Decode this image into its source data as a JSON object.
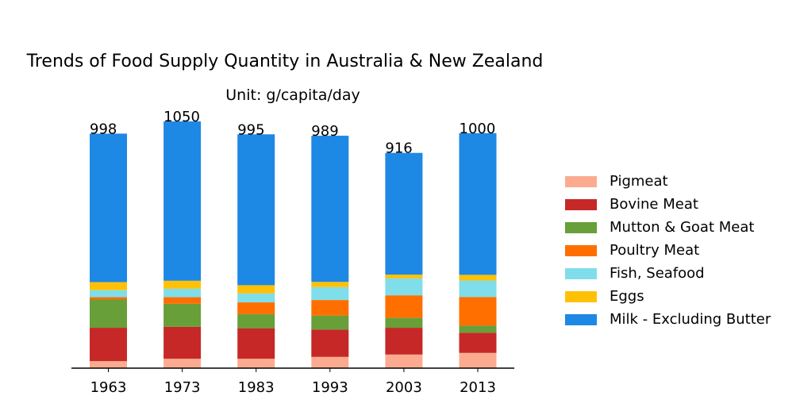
{
  "chart_data": {
    "type": "bar",
    "stacked": true,
    "title": "Trends of Food Supply Quantity in Australia & New Zealand",
    "subtitle": "Unit: g/capita/day",
    "xlabel": "",
    "ylabel": "",
    "categories": [
      "1963",
      "1973",
      "1983",
      "1993",
      "2003",
      "2013"
    ],
    "ylim": [
      0,
      1050
    ],
    "totals": [
      "998",
      "1050",
      "995",
      "989",
      "916",
      "1000"
    ],
    "legend_position": "right",
    "series": [
      {
        "name": "Pigmeat",
        "color": "#FCAB90",
        "values": [
          30,
          40,
          40,
          48,
          58,
          65
        ]
      },
      {
        "name": "Bovine Meat",
        "color": "#C62828",
        "values": [
          142,
          136,
          130,
          116,
          114,
          86
        ]
      },
      {
        "name": "Mutton & Goat Meat",
        "color": "#689F38",
        "values": [
          120,
          98,
          60,
          60,
          42,
          30
        ]
      },
      {
        "name": "Poultry Meat",
        "color": "#FF6F00",
        "values": [
          10,
          28,
          50,
          66,
          96,
          122
        ]
      },
      {
        "name": "Fish, Seafood",
        "color": "#80DEEA",
        "values": [
          30,
          36,
          38,
          55,
          72,
          70
        ]
      },
      {
        "name": "Eggs",
        "color": "#FFC107",
        "values": [
          34,
          34,
          35,
          22,
          16,
          24
        ]
      },
      {
        "name": "Milk - Excluding Butter",
        "color": "#1E88E5",
        "values": [
          632,
          678,
          642,
          622,
          518,
          603
        ]
      }
    ]
  }
}
